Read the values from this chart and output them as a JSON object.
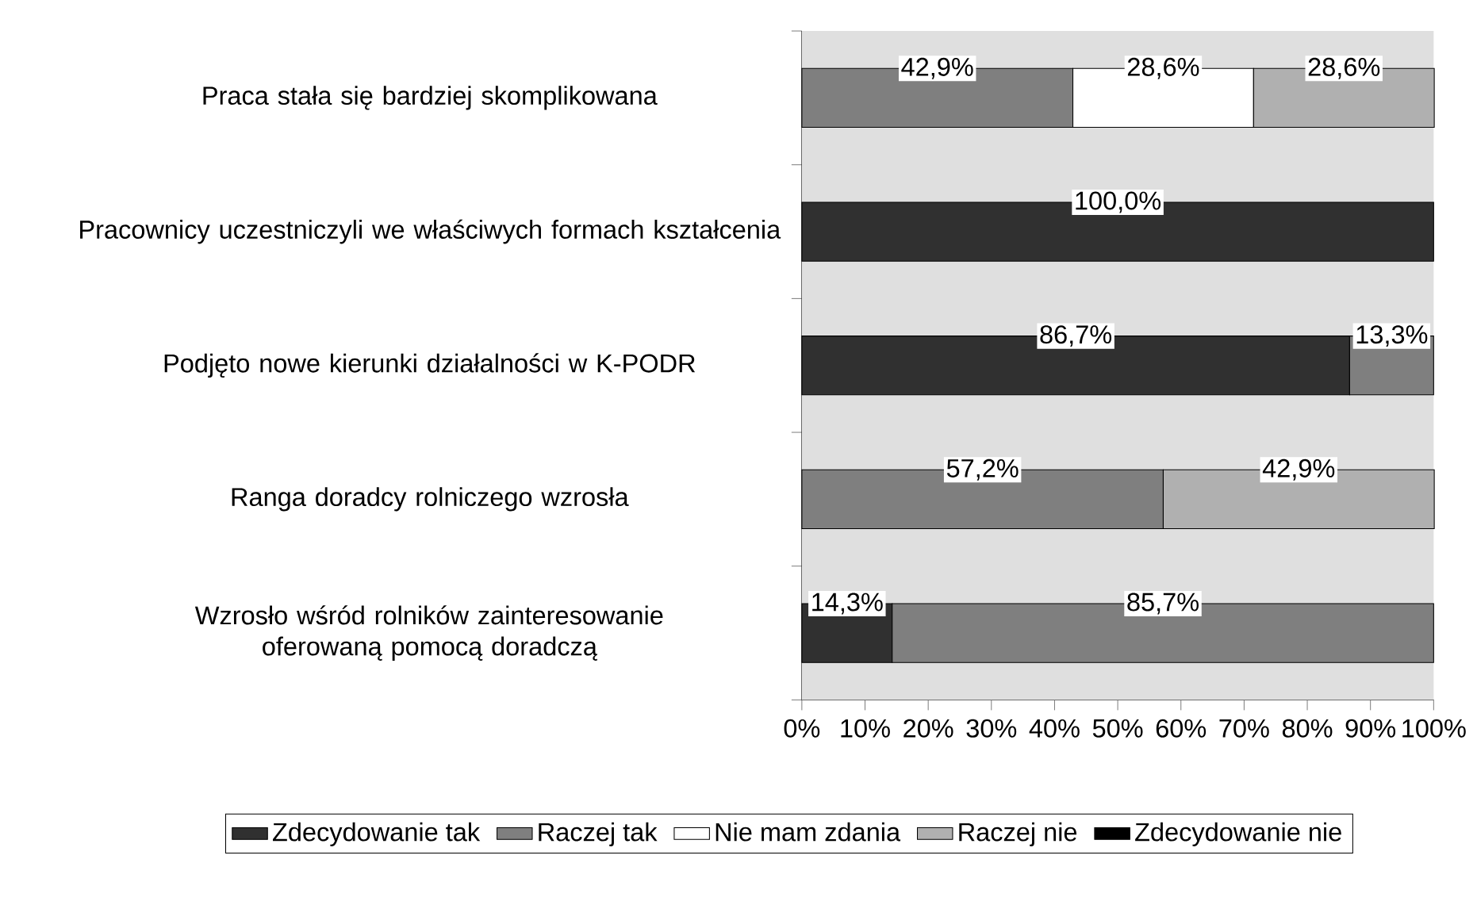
{
  "chart_data": {
    "type": "bar",
    "orientation": "horizontal",
    "stacked": true,
    "categories": [
      "Praca stała się bardziej skomplikowana",
      "Pracownicy uczestniczyli we właściwych formach kształcenia",
      "Podjęto nowe kierunki działalności w K-PODR",
      "Ranga doradcy rolniczego wzrosła",
      "Wzrosło wśród rolników zainteresowanie oferowaną pomocą doradczą"
    ],
    "series": [
      {
        "name": "Zdecydowanie tak",
        "color": "#303030",
        "values": [
          null,
          100,
          86.7,
          null,
          14.3
        ],
        "value_labels": [
          null,
          "100,0%",
          "86,7%",
          null,
          "14,3%"
        ]
      },
      {
        "name": "Raczej tak",
        "color": "#7f7f7f",
        "values": [
          42.9,
          null,
          13.3,
          57.2,
          85.7
        ],
        "value_labels": [
          "42,9%",
          null,
          "13,3%",
          "57,2%",
          "85,7%"
        ]
      },
      {
        "name": "Nie mam zdania",
        "color": "#ffffff",
        "values": [
          28.6,
          null,
          null,
          null,
          null
        ],
        "value_labels": [
          "28,6%",
          null,
          null,
          null,
          null
        ]
      },
      {
        "name": "Raczej nie",
        "color": "#b0b0b0",
        "values": [
          28.6,
          null,
          null,
          42.9,
          null
        ],
        "value_labels": [
          "28,6%",
          null,
          null,
          "42,9%",
          null
        ]
      },
      {
        "name": "Zdecydowanie nie",
        "color": "#000000",
        "values": [
          null,
          null,
          null,
          null,
          null
        ]
      }
    ],
    "xlim": [
      0,
      100
    ],
    "xticks": [
      {
        "value": 0,
        "label": "0%"
      },
      {
        "value": 10,
        "label": "10%"
      },
      {
        "value": 20,
        "label": "20%"
      },
      {
        "value": 30,
        "label": "30%"
      },
      {
        "value": 40,
        "label": "40%"
      },
      {
        "value": 50,
        "label": "50%"
      },
      {
        "value": 60,
        "label": "60%"
      },
      {
        "value": 70,
        "label": "70%"
      },
      {
        "value": 80,
        "label": "80%"
      },
      {
        "value": 90,
        "label": "90%"
      },
      {
        "value": 100,
        "label": "100%"
      }
    ],
    "legend": "bottom"
  }
}
